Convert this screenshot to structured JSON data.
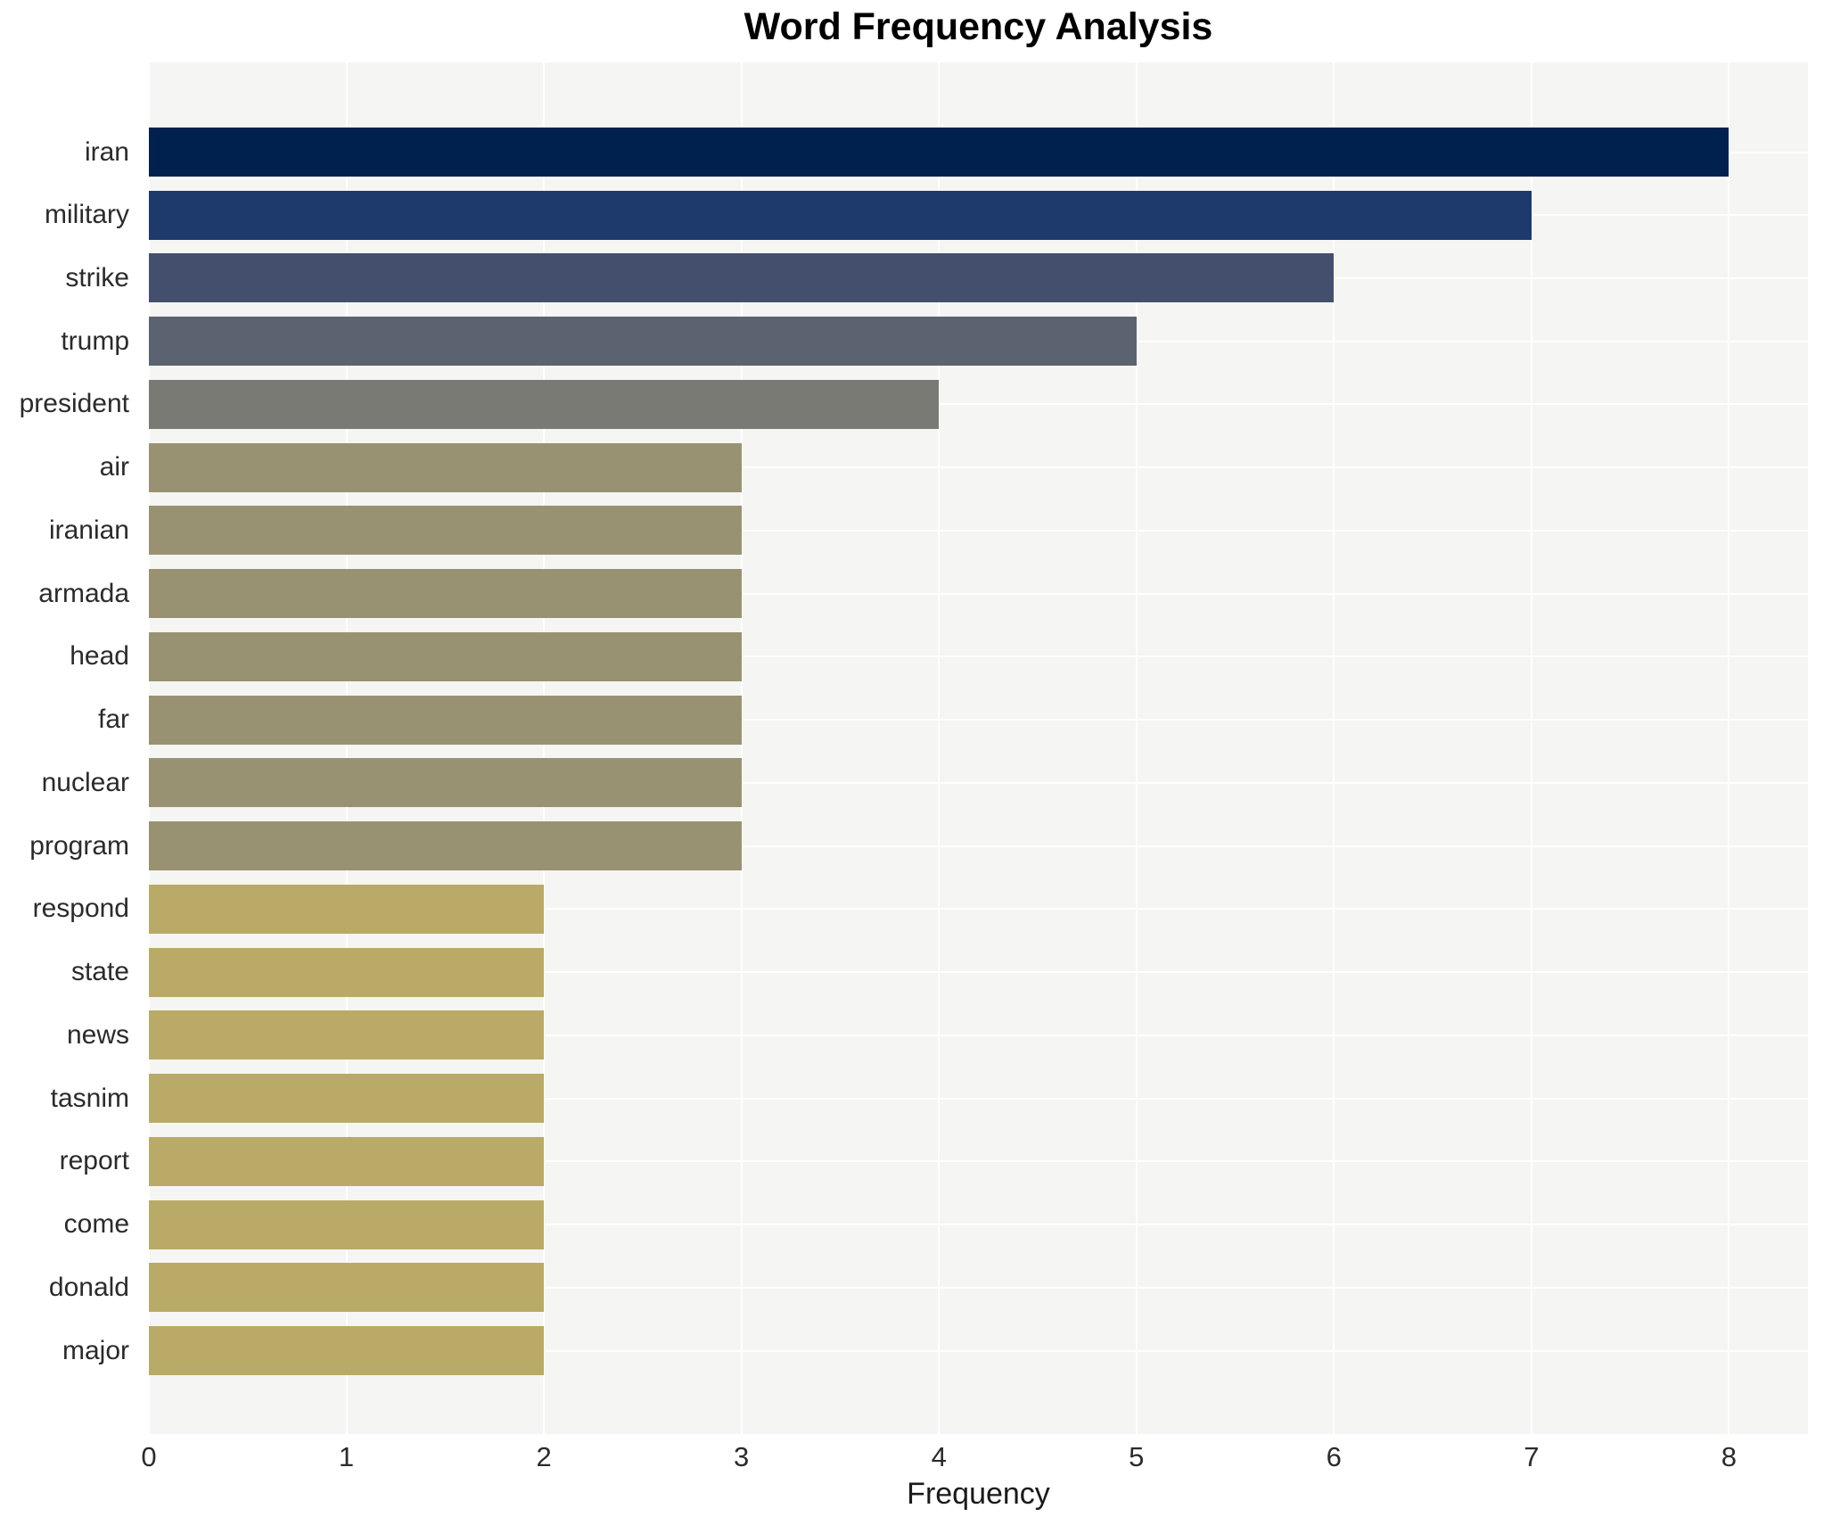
{
  "chart_data": {
    "type": "bar",
    "orientation": "horizontal",
    "title": "Word Frequency Analysis",
    "xlabel": "Frequency",
    "ylabel": "",
    "categories": [
      "iran",
      "military",
      "strike",
      "trump",
      "president",
      "air",
      "iranian",
      "armada",
      "head",
      "far",
      "nuclear",
      "program",
      "respond",
      "state",
      "news",
      "tasnim",
      "report",
      "come",
      "donald",
      "major"
    ],
    "values": [
      8,
      7,
      6,
      5,
      4,
      3,
      3,
      3,
      3,
      3,
      3,
      3,
      2,
      2,
      2,
      2,
      2,
      2,
      2,
      2
    ],
    "bar_colors": [
      "#00204e",
      "#1e3a6d",
      "#444f6e",
      "#5c6370",
      "#7a7a74",
      "#999272",
      "#999272",
      "#999272",
      "#999272",
      "#999272",
      "#999272",
      "#999272",
      "#b9aa67",
      "#b9aa67",
      "#b9aa67",
      "#b9aa67",
      "#b9aa67",
      "#b9aa67",
      "#b9aa67",
      "#b9aa67"
    ],
    "xlim": [
      0,
      8
    ],
    "x_ticks": [
      "0",
      "1",
      "2",
      "3",
      "4",
      "5",
      "6",
      "7",
      "8"
    ],
    "grid": true,
    "legend": false,
    "plot_bg_color": "#f5f5f3",
    "grid_color": "#ffffff"
  }
}
